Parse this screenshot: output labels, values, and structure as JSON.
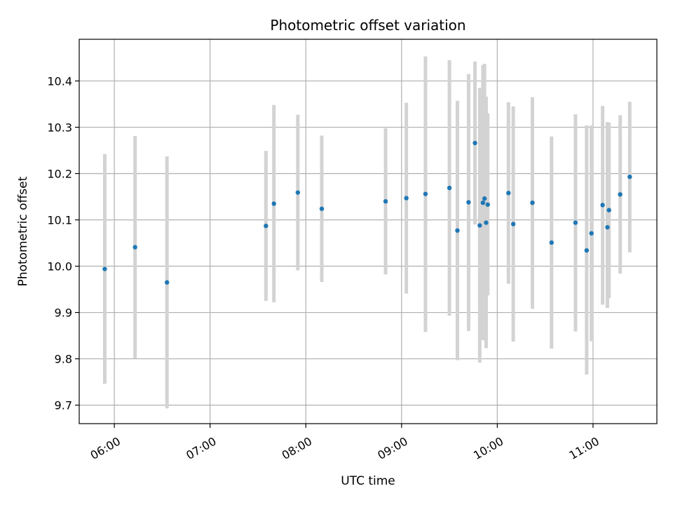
{
  "chart_data": {
    "type": "scatter",
    "title": "Photometric offset variation",
    "xlabel": "UTC time",
    "ylabel": "Photometric offset",
    "x_ticks": [
      "06:00",
      "07:00",
      "08:00",
      "09:00",
      "10:00",
      "11:00"
    ],
    "y_ticks": [
      "9.7",
      "9.8",
      "9.9",
      "10.0",
      "10.1",
      "10.2",
      "10.3",
      "10.4"
    ],
    "xlim": [
      "05:38",
      "11:40"
    ],
    "ylim": [
      9.66,
      10.49
    ],
    "grid": true,
    "marker_color": "#1f77b4",
    "errorbar_color": "#d3d3d3",
    "points": [
      {
        "x": "05:54",
        "y": 9.994,
        "ylow": 9.746,
        "yhigh": 10.242
      },
      {
        "x": "06:13",
        "y": 10.041,
        "ylow": 9.801,
        "yhigh": 10.281
      },
      {
        "x": "06:33",
        "y": 9.965,
        "ylow": 9.693,
        "yhigh": 10.237
      },
      {
        "x": "07:35",
        "y": 10.087,
        "ylow": 9.925,
        "yhigh": 10.249
      },
      {
        "x": "07:40",
        "y": 10.135,
        "ylow": 9.922,
        "yhigh": 10.348
      },
      {
        "x": "07:55",
        "y": 10.159,
        "ylow": 9.991,
        "yhigh": 10.327
      },
      {
        "x": "08:10",
        "y": 10.124,
        "ylow": 9.966,
        "yhigh": 10.282
      },
      {
        "x": "08:50",
        "y": 10.14,
        "ylow": 9.982,
        "yhigh": 10.298
      },
      {
        "x": "09:03",
        "y": 10.147,
        "ylow": 9.941,
        "yhigh": 10.353
      },
      {
        "x": "09:15",
        "y": 10.156,
        "ylow": 9.858,
        "yhigh": 10.453
      },
      {
        "x": "09:30",
        "y": 10.169,
        "ylow": 9.893,
        "yhigh": 10.445
      },
      {
        "x": "09:35",
        "y": 10.077,
        "ylow": 9.797,
        "yhigh": 10.357
      },
      {
        "x": "09:42",
        "y": 10.138,
        "ylow": 9.86,
        "yhigh": 10.415
      },
      {
        "x": "09:46",
        "y": 10.266,
        "ylow": 10.09,
        "yhigh": 10.442
      },
      {
        "x": "09:49",
        "y": 10.088,
        "ylow": 9.792,
        "yhigh": 10.385
      },
      {
        "x": "09:51",
        "y": 10.137,
        "ylow": 9.84,
        "yhigh": 10.434
      },
      {
        "x": "09:52",
        "y": 10.146,
        "ylow": 9.841,
        "yhigh": 10.437
      },
      {
        "x": "09:53",
        "y": 10.094,
        "ylow": 9.823,
        "yhigh": 10.366
      },
      {
        "x": "09:54",
        "y": 10.133,
        "ylow": 9.937,
        "yhigh": 10.33
      },
      {
        "x": "10:07",
        "y": 10.158,
        "ylow": 9.962,
        "yhigh": 10.354
      },
      {
        "x": "10:10",
        "y": 10.091,
        "ylow": 9.837,
        "yhigh": 10.345
      },
      {
        "x": "10:22",
        "y": 10.137,
        "ylow": 9.908,
        "yhigh": 10.365
      },
      {
        "x": "10:34",
        "y": 10.051,
        "ylow": 9.822,
        "yhigh": 10.28
      },
      {
        "x": "10:49",
        "y": 10.094,
        "ylow": 9.859,
        "yhigh": 10.328
      },
      {
        "x": "10:56",
        "y": 10.034,
        "ylow": 9.766,
        "yhigh": 10.304
      },
      {
        "x": "10:59",
        "y": 10.071,
        "ylow": 9.838,
        "yhigh": 10.304
      },
      {
        "x": "11:06",
        "y": 10.132,
        "ylow": 9.917,
        "yhigh": 10.346
      },
      {
        "x": "11:09",
        "y": 10.084,
        "ylow": 9.91,
        "yhigh": 10.311
      },
      {
        "x": "11:10",
        "y": 10.121,
        "ylow": 9.931,
        "yhigh": 10.31
      },
      {
        "x": "11:17",
        "y": 10.155,
        "ylow": 9.984,
        "yhigh": 10.326
      },
      {
        "x": "11:23",
        "y": 10.193,
        "ylow": 10.03,
        "yhigh": 10.355
      }
    ]
  }
}
